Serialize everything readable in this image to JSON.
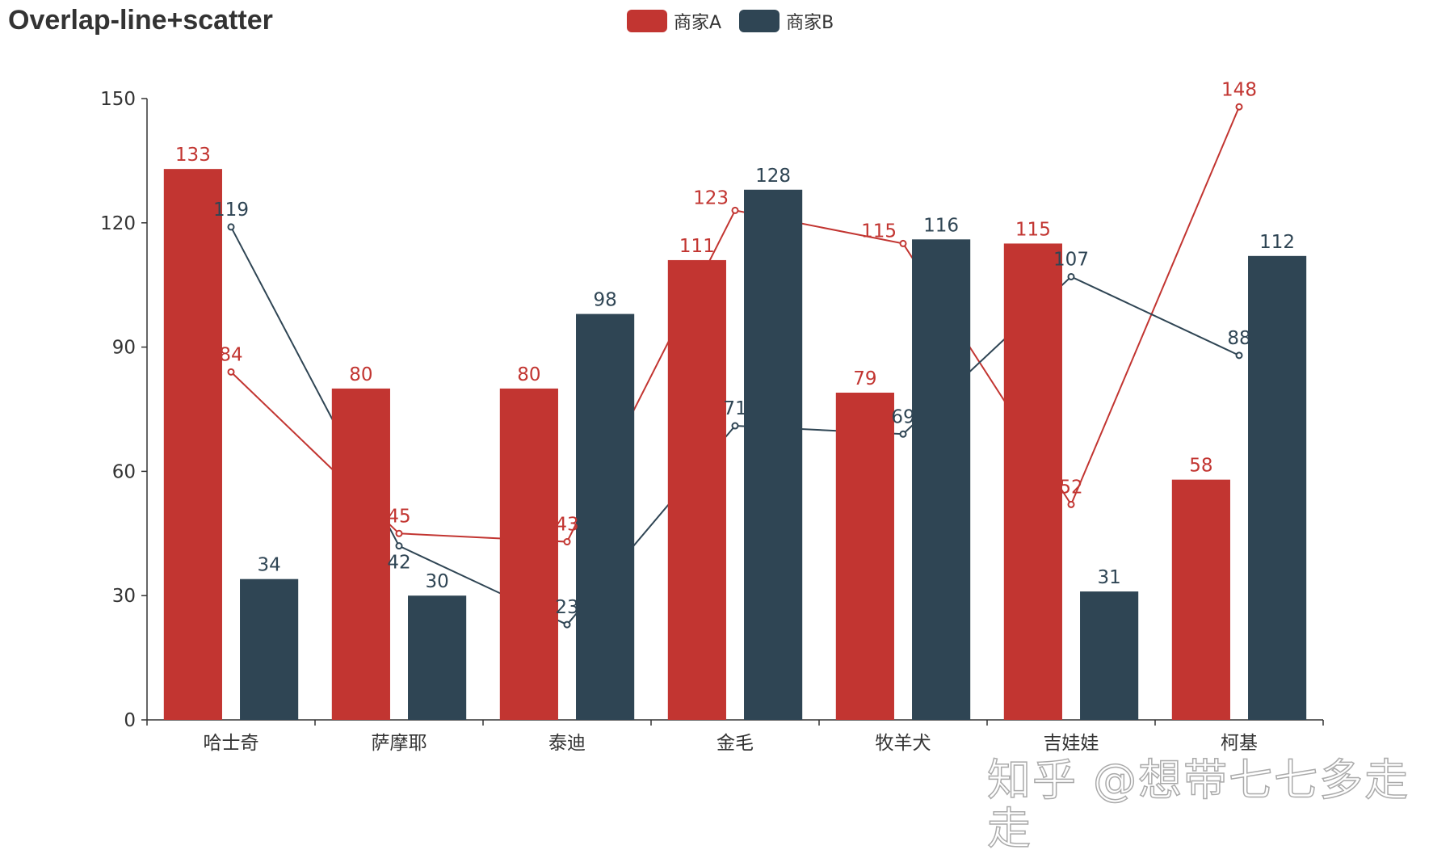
{
  "chart_data": {
    "type": "bar",
    "title": "Overlap-line+scatter",
    "categories": [
      "哈士奇",
      "萨摩耶",
      "泰迪",
      "金毛",
      "牧羊犬",
      "吉娃娃",
      "柯基"
    ],
    "ylim": [
      0,
      150
    ],
    "yticks": [
      0,
      30,
      60,
      90,
      120,
      150
    ],
    "legend_position": "top",
    "grid": false,
    "series": [
      {
        "name": "商家A",
        "type": "bar",
        "color": "#c23531",
        "values": [
          133,
          80,
          80,
          111,
          79,
          115,
          58
        ]
      },
      {
        "name": "商家B",
        "type": "bar",
        "color": "#2f4554",
        "values": [
          34,
          30,
          98,
          128,
          116,
          31,
          112
        ]
      }
    ],
    "lines": [
      {
        "type": "line",
        "color": "#c23531",
        "values": [
          84,
          45,
          43,
          123,
          115,
          52,
          148
        ]
      },
      {
        "type": "line",
        "color": "#2f4554",
        "values": [
          119,
          42,
          23,
          71,
          69,
          107,
          88
        ]
      }
    ]
  },
  "watermark": "知乎 @想带七七多走走"
}
